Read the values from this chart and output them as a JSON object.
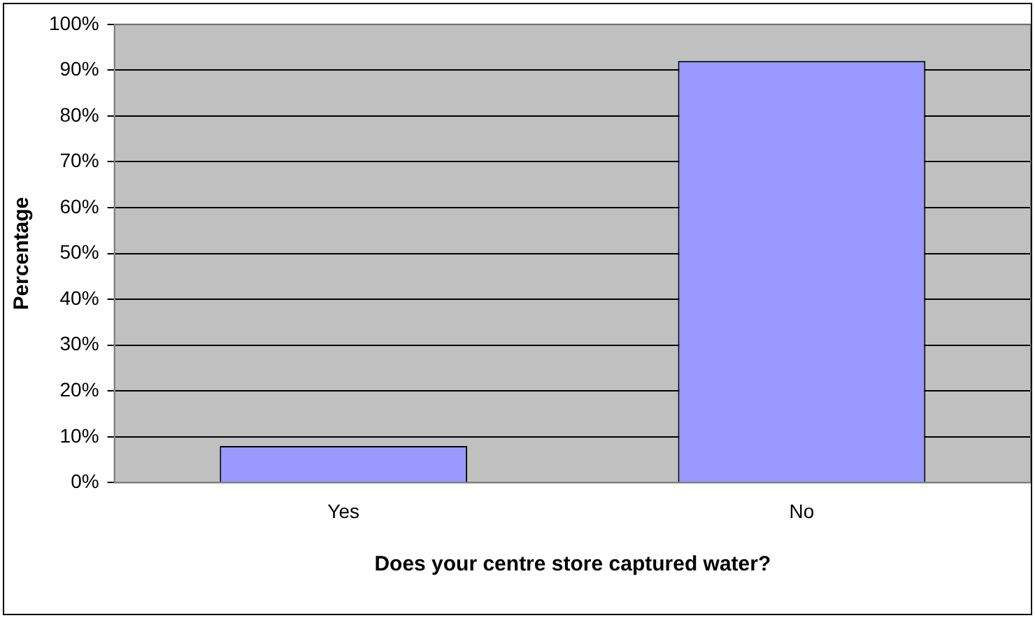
{
  "chart_data": {
    "type": "bar",
    "xlabel": "Does your centre store captured water?",
    "ylabel": "Percentage",
    "categories": [
      "Yes",
      "No"
    ],
    "values": [
      8,
      92
    ],
    "color": "#9999ff",
    "ylim": [
      0,
      100
    ],
    "yticks": [
      {
        "value": 0,
        "label": "0%"
      },
      {
        "value": 10,
        "label": "10%"
      },
      {
        "value": 20,
        "label": "20%"
      },
      {
        "value": 30,
        "label": "30%"
      },
      {
        "value": 40,
        "label": "40%"
      },
      {
        "value": 50,
        "label": "50%"
      },
      {
        "value": 60,
        "label": "60%"
      },
      {
        "value": 70,
        "label": "70%"
      },
      {
        "value": 80,
        "label": "80%"
      },
      {
        "value": 90,
        "label": "90%"
      },
      {
        "value": 100,
        "label": "100%"
      }
    ],
    "grid": "y",
    "legend": false
  }
}
